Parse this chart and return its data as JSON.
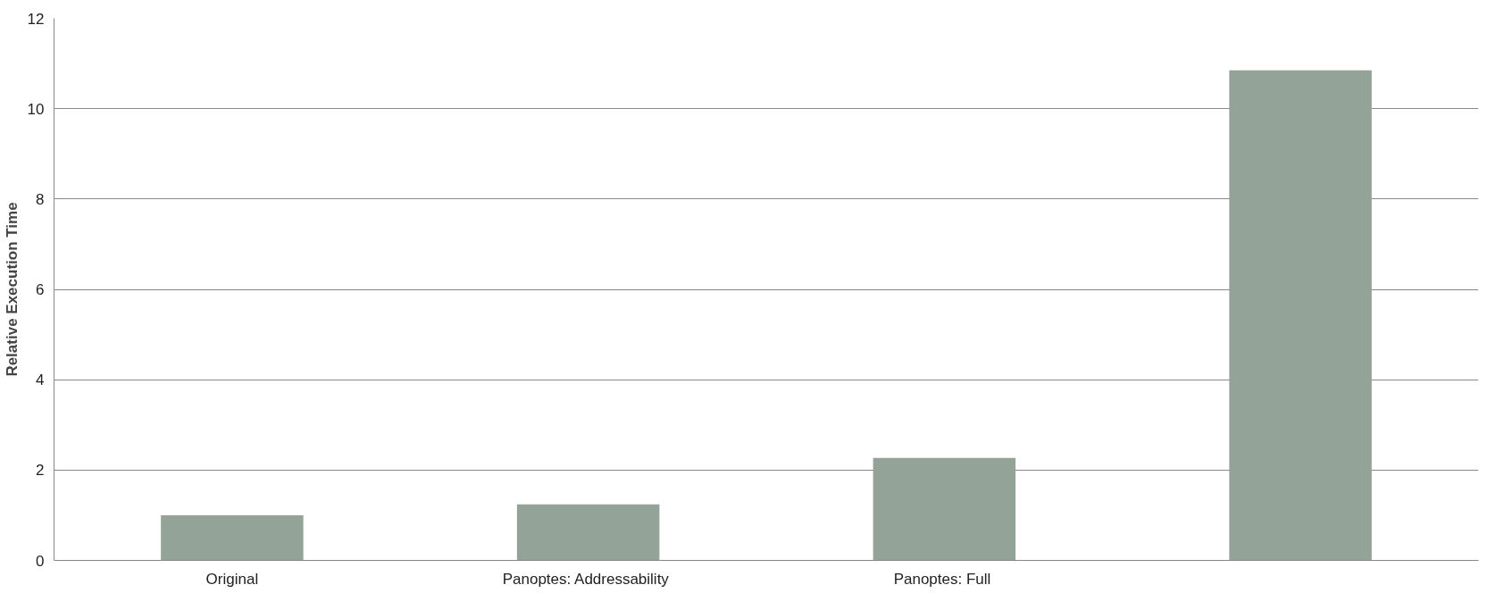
{
  "chart_data": {
    "type": "bar",
    "ylabel": "Relative Execution Time",
    "categories": [
      "Original",
      "Panoptes:  Addressability",
      "Panoptes:  Full",
      null
    ],
    "values": [
      1.0,
      1.24,
      2.27,
      10.85
    ],
    "color": "#93a397",
    "ylim": [
      0,
      12
    ],
    "yticks": [
      0,
      2,
      4,
      6,
      8,
      10,
      12
    ],
    "grid": "y"
  }
}
